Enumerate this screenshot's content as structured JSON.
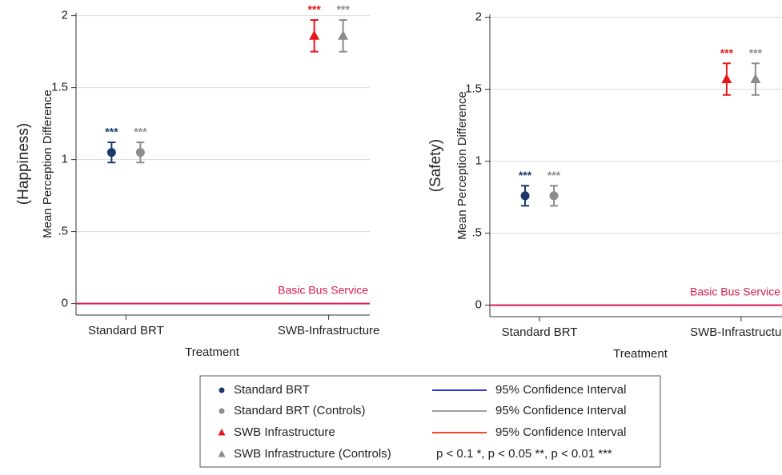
{
  "chart_data": [
    {
      "type": "errorbar",
      "y_label": "Mean Perception Difference",
      "y_label_outer": "(Happiness)",
      "x_label": "Treatment",
      "categories": [
        "Standard BRT",
        "SWB-Infrastructure"
      ],
      "series": [
        {
          "name": "Standard BRT",
          "color": "#1b3a6b",
          "marker": "circle",
          "values": [
            1.05,
            null
          ],
          "errors": [
            0.07,
            null
          ],
          "sig": [
            "***",
            null
          ]
        },
        {
          "name": "Standard BRT (Controls)",
          "color": "#8c8c8c",
          "marker": "circle",
          "values": [
            1.05,
            null
          ],
          "errors": [
            0.07,
            null
          ],
          "sig": [
            "***",
            null
          ]
        },
        {
          "name": "SWB Infrastructure",
          "color": "#e8151b",
          "marker": "triangle",
          "values": [
            null,
            1.86
          ],
          "errors": [
            null,
            0.11
          ],
          "sig": [
            null,
            "***"
          ]
        },
        {
          "name": "SWB Infrastructure (Controls)",
          "color": "#8c8c8c",
          "marker": "triangle",
          "values": [
            null,
            1.86
          ],
          "errors": [
            null,
            0.11
          ],
          "sig": [
            null,
            "***"
          ]
        }
      ],
      "reference": {
        "value": 0,
        "label": "Basic Bus Service",
        "color": "#d81b4a"
      },
      "ylim": [
        -0.08,
        2.02
      ],
      "yticks": [
        0,
        {
          "value": 0.5,
          "label": ".5"
        },
        1,
        1.5,
        2
      ],
      "grid": true
    },
    {
      "type": "errorbar",
      "y_label": "Mean Perception Difference",
      "y_label_outer": "(Safety)",
      "x_label": "Treatment",
      "categories": [
        "Standard BRT",
        "SWB-Infrastructure"
      ],
      "series": [
        {
          "color": "#1b3a6b",
          "marker": "circle",
          "values": [
            0.76,
            null
          ],
          "errors": [
            0.07,
            null
          ],
          "sig": [
            "***",
            null
          ]
        },
        {
          "color": "#8c8c8c",
          "marker": "circle",
          "values": [
            0.76,
            null
          ],
          "errors": [
            0.07,
            null
          ],
          "sig": [
            "***",
            null
          ]
        },
        {
          "color": "#e8151b",
          "marker": "triangle",
          "values": [
            null,
            1.57
          ],
          "errors": [
            null,
            0.11
          ],
          "sig": [
            null,
            "***"
          ]
        },
        {
          "color": "#8c8c8c",
          "marker": "triangle",
          "values": [
            null,
            1.57
          ],
          "errors": [
            null,
            0.11
          ],
          "sig": [
            null,
            "***"
          ]
        }
      ],
      "reference": {
        "value": 0,
        "label": "Basic Bus Service",
        "color": "#d81b4a"
      },
      "ylim": [
        -0.08,
        2.02
      ],
      "yticks": [
        0,
        {
          "value": 0.5,
          "label": ".5"
        },
        1,
        1.5,
        2
      ],
      "grid": true
    }
  ],
  "legend_intervals": [
    {
      "label": "95% Confidence Interval",
      "color": "#3434d8"
    },
    {
      "label": "95% Confidence Interval",
      "color": "#a0a0a0"
    },
    {
      "label": "95% Confidence Interval",
      "color": "#ee4a2a"
    }
  ],
  "significance_note": "p < 0.1 *, p < 0.05 **, p < 0.01 ***"
}
